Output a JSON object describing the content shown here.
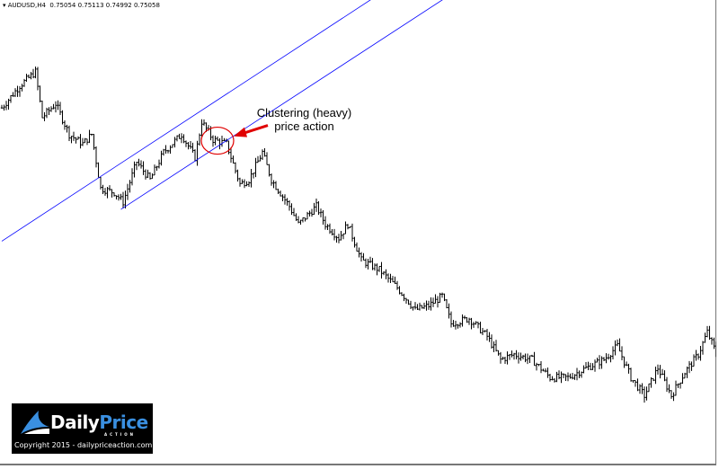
{
  "header": {
    "symbol": "AUDUSD,H4",
    "open": "0.75054",
    "high": "0.75113",
    "low": "0.74992",
    "close": "0.75058"
  },
  "annotation": {
    "line1": "Clustering (heavy)",
    "line2": "price action",
    "color": "#e00000"
  },
  "logo": {
    "brand_a": "Daily",
    "brand_b": "Price",
    "sub": "ACTION",
    "copyright": "Copyright 2015 - dailypriceaction.com"
  },
  "chart_data": {
    "type": "ohlc",
    "symbol": "AUDUSD",
    "timeframe": "H4",
    "ylim": [
      0.7405,
      0.7845
    ],
    "bar_count": 320,
    "close_path": [
      {
        "bar": 0,
        "close": 0.7743
      },
      {
        "bar": 8,
        "close": 0.7764
      },
      {
        "bar": 15,
        "close": 0.7777
      },
      {
        "bar": 18,
        "close": 0.7734
      },
      {
        "bar": 24,
        "close": 0.7747
      },
      {
        "bar": 30,
        "close": 0.7718
      },
      {
        "bar": 36,
        "close": 0.7709
      },
      {
        "bar": 40,
        "close": 0.7718
      },
      {
        "bar": 44,
        "close": 0.7667
      },
      {
        "bar": 50,
        "close": 0.7663
      },
      {
        "bar": 54,
        "close": 0.7654
      },
      {
        "bar": 60,
        "close": 0.7692
      },
      {
        "bar": 66,
        "close": 0.7675
      },
      {
        "bar": 72,
        "close": 0.7701
      },
      {
        "bar": 80,
        "close": 0.7718
      },
      {
        "bar": 86,
        "close": 0.7696
      },
      {
        "bar": 89,
        "close": 0.773
      },
      {
        "bar": 94,
        "close": 0.7713
      },
      {
        "bar": 100,
        "close": 0.7709
      },
      {
        "bar": 106,
        "close": 0.7671
      },
      {
        "bar": 110,
        "close": 0.7675
      },
      {
        "bar": 116,
        "close": 0.7701
      },
      {
        "bar": 120,
        "close": 0.7675
      },
      {
        "bar": 128,
        "close": 0.765
      },
      {
        "bar": 132,
        "close": 0.7633
      },
      {
        "bar": 140,
        "close": 0.765
      },
      {
        "bar": 144,
        "close": 0.7633
      },
      {
        "bar": 150,
        "close": 0.762
      },
      {
        "bar": 154,
        "close": 0.7633
      },
      {
        "bar": 160,
        "close": 0.7599
      },
      {
        "bar": 168,
        "close": 0.759
      },
      {
        "bar": 176,
        "close": 0.7573
      },
      {
        "bar": 184,
        "close": 0.7552
      },
      {
        "bar": 190,
        "close": 0.7556
      },
      {
        "bar": 196,
        "close": 0.7565
      },
      {
        "bar": 200,
        "close": 0.7539
      },
      {
        "bar": 208,
        "close": 0.7544
      },
      {
        "bar": 216,
        "close": 0.7527
      },
      {
        "bar": 222,
        "close": 0.7505
      },
      {
        "bar": 228,
        "close": 0.751
      },
      {
        "bar": 236,
        "close": 0.7505
      },
      {
        "bar": 244,
        "close": 0.7488
      },
      {
        "bar": 252,
        "close": 0.7488
      },
      {
        "bar": 260,
        "close": 0.7497
      },
      {
        "bar": 268,
        "close": 0.7505
      },
      {
        "bar": 274,
        "close": 0.7518
      },
      {
        "bar": 280,
        "close": 0.7488
      },
      {
        "bar": 286,
        "close": 0.7471
      },
      {
        "bar": 292,
        "close": 0.7497
      },
      {
        "bar": 298,
        "close": 0.7471
      },
      {
        "bar": 304,
        "close": 0.7493
      },
      {
        "bar": 310,
        "close": 0.751
      },
      {
        "bar": 314,
        "close": 0.7531
      },
      {
        "bar": 319,
        "close": 0.7506
      }
    ],
    "trendlines": [
      {
        "name": "channel-upper",
        "color": "#0000ff",
        "from": {
          "bar": 0,
          "price": 0.7617
        },
        "to": {
          "bar": 164,
          "price": 0.7845
        }
      },
      {
        "name": "channel-lower",
        "color": "#0000ff",
        "from": {
          "bar": 53,
          "price": 0.7647
        },
        "to": {
          "bar": 196,
          "price": 0.7845
        }
      }
    ],
    "highlight": {
      "center": {
        "bar": 96,
        "price": 0.7712
      },
      "color": "#e00000"
    }
  }
}
